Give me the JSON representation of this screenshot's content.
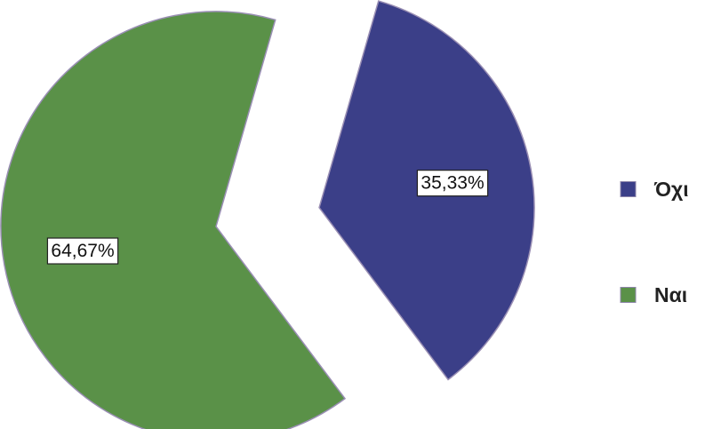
{
  "chart_data": {
    "type": "pie",
    "title": "",
    "slices": [
      {
        "name": "Όχι",
        "value": 35.33,
        "label": "35,33%",
        "color": "#3b3f88",
        "exploded": true
      },
      {
        "name": "Ναι",
        "value": 64.67,
        "label": "64,67%",
        "color": "#5a9148",
        "exploded": false
      }
    ],
    "legend": {
      "placement": "right",
      "items": [
        {
          "name": "Όχι",
          "color": "#3b3f88"
        },
        {
          "name": "Ναι",
          "color": "#5a9148"
        }
      ]
    },
    "grid": false
  }
}
